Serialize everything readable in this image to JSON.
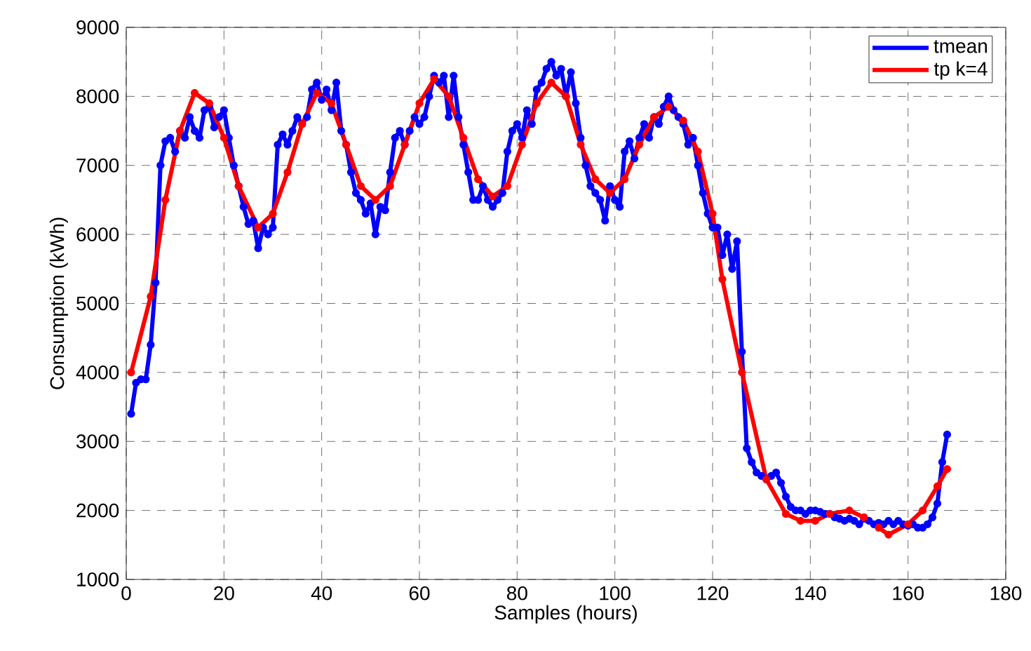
{
  "chart_data": {
    "type": "line",
    "xlabel": "Samples (hours)",
    "ylabel": "Consumption (kWh)",
    "xlim": [
      0,
      180
    ],
    "ylim": [
      1000,
      9000
    ],
    "xticks": [
      0,
      20,
      40,
      60,
      80,
      100,
      120,
      140,
      160,
      180
    ],
    "yticks": [
      1000,
      2000,
      3000,
      4000,
      5000,
      6000,
      7000,
      8000,
      9000
    ],
    "grid": true,
    "legend": "top right",
    "marker": "circle",
    "line_style": "solid",
    "series": [
      {
        "name": "tmean",
        "color": "#0000ff",
        "x": [
          1,
          2,
          3,
          4,
          5,
          6,
          7,
          8,
          9,
          10,
          11,
          12,
          13,
          14,
          15,
          16,
          17,
          18,
          19,
          20,
          21,
          22,
          23,
          24,
          25,
          26,
          27,
          28,
          29,
          30,
          31,
          32,
          33,
          34,
          35,
          36,
          37,
          38,
          39,
          40,
          41,
          42,
          43,
          44,
          45,
          46,
          47,
          48,
          49,
          50,
          51,
          52,
          53,
          54,
          55,
          56,
          57,
          58,
          59,
          60,
          61,
          62,
          63,
          64,
          65,
          66,
          67,
          68,
          69,
          70,
          71,
          72,
          73,
          74,
          75,
          76,
          77,
          78,
          79,
          80,
          81,
          82,
          83,
          84,
          85,
          86,
          87,
          88,
          89,
          90,
          91,
          92,
          93,
          94,
          95,
          96,
          97,
          98,
          99,
          100,
          101,
          102,
          103,
          104,
          105,
          106,
          107,
          108,
          109,
          110,
          111,
          112,
          113,
          114,
          115,
          116,
          117,
          118,
          119,
          120,
          121,
          122,
          123,
          124,
          125,
          126,
          127,
          128,
          129,
          130,
          131,
          132,
          133,
          134,
          135,
          136,
          137,
          138,
          139,
          140,
          141,
          142,
          143,
          144,
          145,
          146,
          147,
          148,
          149,
          150,
          151,
          152,
          153,
          154,
          155,
          156,
          157,
          158,
          159,
          160,
          161,
          162,
          163,
          164,
          165,
          166,
          167,
          168
        ],
        "values": [
          3400,
          3850,
          3900,
          3900,
          4400,
          5300,
          7000,
          7350,
          7400,
          7200,
          7500,
          7400,
          7700,
          7500,
          7400,
          7800,
          7850,
          7550,
          7700,
          7800,
          7400,
          7000,
          6700,
          6400,
          6150,
          6200,
          5800,
          6100,
          6000,
          6100,
          7300,
          7450,
          7300,
          7500,
          7700,
          7600,
          7700,
          8100,
          8200,
          7950,
          8100,
          7800,
          8200,
          7500,
          7300,
          6900,
          6600,
          6500,
          6300,
          6450,
          6000,
          6400,
          6350,
          6900,
          7400,
          7500,
          7300,
          7500,
          7700,
          7600,
          7700,
          8000,
          8300,
          8200,
          8300,
          7700,
          8300,
          7700,
          7300,
          6900,
          6500,
          6500,
          6700,
          6500,
          6400,
          6500,
          6600,
          7200,
          7500,
          7600,
          7400,
          7800,
          7600,
          8100,
          8200,
          8400,
          8500,
          8300,
          8400,
          8000,
          8350,
          7900,
          7400,
          7000,
          6700,
          6600,
          6500,
          6200,
          6700,
          6500,
          6400,
          7200,
          7350,
          7100,
          7400,
          7600,
          7400,
          7700,
          7600,
          7850,
          8000,
          7800,
          7700,
          7600,
          7300,
          7400,
          7000,
          6600,
          6300,
          6100,
          6100,
          5700,
          6000,
          5500,
          5900,
          4300,
          2900,
          2700,
          2550,
          2500,
          2450,
          2500,
          2550,
          2400,
          2200,
          2050,
          2000,
          2000,
          1950,
          2000,
          2000,
          1980,
          1950,
          1950,
          1900,
          1880,
          1850,
          1880,
          1850,
          1800,
          1880,
          1850,
          1800,
          1820,
          1800,
          1850,
          1800,
          1850,
          1800,
          1780,
          1800,
          1750,
          1750,
          1800,
          1900,
          2100,
          2700,
          3100
        ]
      },
      {
        "name": "tp k=4",
        "color": "#ff0000",
        "x": [
          1,
          5,
          8,
          11,
          14,
          17,
          20,
          23,
          27,
          30,
          33,
          36,
          39,
          42,
          45,
          48,
          51,
          54,
          57,
          60,
          63,
          66,
          69,
          72,
          75,
          78,
          81,
          84,
          87,
          90,
          93,
          96,
          99,
          102,
          105,
          108,
          111,
          114,
          117,
          120,
          122,
          126,
          131,
          135,
          138,
          141,
          144,
          148,
          151,
          154,
          156,
          160,
          163,
          166,
          168
        ],
        "values": [
          4000,
          5100,
          6500,
          7500,
          8050,
          7900,
          7400,
          6700,
          6100,
          6300,
          6900,
          7600,
          8050,
          7900,
          7300,
          6700,
          6500,
          6700,
          7300,
          7900,
          8250,
          8000,
          7400,
          6800,
          6550,
          6700,
          7300,
          7900,
          8200,
          8000,
          7300,
          6800,
          6600,
          6800,
          7300,
          7700,
          7850,
          7650,
          7200,
          6300,
          5350,
          4000,
          2450,
          1950,
          1850,
          1850,
          1950,
          2000,
          1900,
          1750,
          1650,
          1800,
          2000,
          2350,
          2600
        ]
      }
    ]
  }
}
